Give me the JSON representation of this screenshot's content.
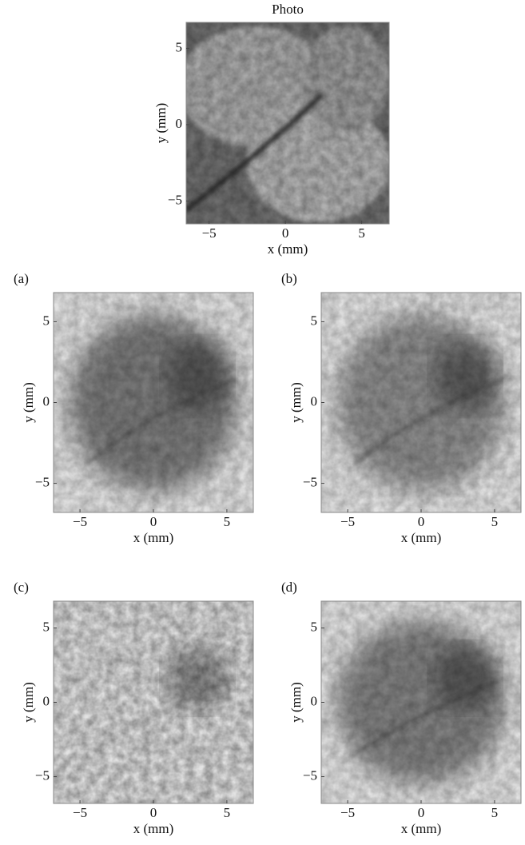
{
  "chart_data": [
    {
      "type": "image",
      "title": "Photo",
      "xlabel": "x (mm)",
      "ylabel": "y (mm)",
      "xlim": [
        -6.5,
        6.8
      ],
      "ylim": [
        -6.5,
        6.7
      ],
      "xticks": [
        {
          "value": -5,
          "label": "−5"
        },
        0,
        5
      ],
      "yticks": [
        {
          "value": -5,
          "label": "−5"
        },
        0,
        5
      ]
    },
    {
      "type": "image",
      "label": "(a)",
      "xlabel": "x (mm)",
      "ylabel": "y (mm)",
      "xlim": [
        -6.8,
        6.8
      ],
      "ylim": [
        -6.8,
        6.8
      ],
      "xticks": [
        {
          "value": -5,
          "label": "−5"
        },
        0,
        5
      ],
      "yticks": [
        {
          "value": -5,
          "label": "−5"
        },
        0,
        5
      ]
    },
    {
      "type": "image",
      "label": "(b)",
      "xlabel": "x (mm)",
      "ylabel": "y (mm)",
      "xlim": [
        -6.8,
        6.8
      ],
      "ylim": [
        -6.8,
        6.8
      ],
      "xticks": [
        {
          "value": -5,
          "label": "−5"
        },
        0,
        5
      ],
      "yticks": [
        {
          "value": -5,
          "label": "−5"
        },
        0,
        5
      ]
    },
    {
      "type": "image",
      "label": "(c)",
      "xlabel": "x (mm)",
      "ylabel": "y (mm)",
      "xlim": [
        -6.8,
        6.8
      ],
      "ylim": [
        -6.8,
        6.8
      ],
      "xticks": [
        {
          "value": -5,
          "label": "−5"
        },
        0,
        5
      ],
      "yticks": [
        {
          "value": -5,
          "label": "−5"
        },
        0,
        5
      ]
    },
    {
      "type": "image",
      "label": "(d)",
      "xlabel": "x (mm)",
      "ylabel": "y (mm)",
      "xlim": [
        -6.8,
        6.8
      ],
      "ylim": [
        -6.8,
        6.8
      ],
      "xticks": [
        {
          "value": -5,
          "label": "−5"
        },
        0,
        5
      ],
      "yticks": [
        {
          "value": -5,
          "label": "−5"
        },
        0,
        5
      ]
    }
  ]
}
